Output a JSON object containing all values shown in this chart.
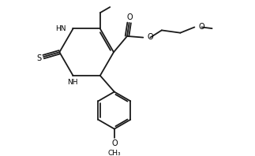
{
  "bg_color": "#ffffff",
  "line_color": "#1a1a1a",
  "line_width": 1.3,
  "figsize": [
    3.23,
    1.98
  ],
  "dpi": 100,
  "xlim": [
    0,
    10
  ],
  "ylim": [
    0,
    6.2
  ]
}
